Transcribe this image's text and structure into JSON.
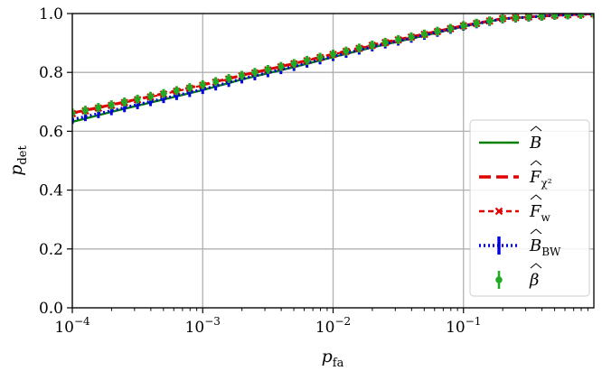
{
  "chart_data": {
    "type": "line",
    "xlabel": "p",
    "xlabel_sub": "fa",
    "ylabel": "p",
    "ylabel_sub": "det",
    "xscale": "log",
    "xlim": [
      0.0001,
      1.0
    ],
    "ylim": [
      0.0,
      1.0
    ],
    "grid": true,
    "legend_placement": "lower-right",
    "x_ticks": [
      {
        "value": 0.0001,
        "base": "10",
        "exp": "−4"
      },
      {
        "value": 0.001,
        "base": "10",
        "exp": "−3"
      },
      {
        "value": 0.01,
        "base": "10",
        "exp": "−2"
      },
      {
        "value": 0.1,
        "base": "10",
        "exp": "−1"
      }
    ],
    "y_ticks": [
      {
        "value": 0.0,
        "label": "0.0"
      },
      {
        "value": 0.2,
        "label": "0.2"
      },
      {
        "value": 0.4,
        "label": "0.4"
      },
      {
        "value": 0.6,
        "label": "0.6"
      },
      {
        "value": 0.8,
        "label": "0.8"
      },
      {
        "value": 1.0,
        "label": "1.0"
      }
    ],
    "x": [
      0.0001,
      0.0002,
      0.0005,
      0.001,
      0.002,
      0.005,
      0.01,
      0.02,
      0.05,
      0.1,
      0.2,
      0.5,
      1.0
    ],
    "series": [
      {
        "name": "B",
        "legend_sub": "",
        "color": "#008000",
        "style": "solid",
        "values": [
          0.632,
          0.666,
          0.708,
          0.74,
          0.776,
          0.818,
          0.852,
          0.885,
          0.925,
          0.956,
          0.982,
          0.994,
          0.999
        ]
      },
      {
        "name": "F",
        "legend_sub": "χ²",
        "color": "#e00000",
        "style": "dashed",
        "values": [
          0.662,
          0.69,
          0.728,
          0.758,
          0.79,
          0.83,
          0.862,
          0.893,
          0.93,
          0.959,
          0.983,
          0.994,
          0.999
        ]
      },
      {
        "name": "F",
        "legend_sub": "w",
        "color": "#e00000",
        "style": "dashed-x",
        "values": [
          0.66,
          0.688,
          0.726,
          0.756,
          0.788,
          0.829,
          0.861,
          0.892,
          0.929,
          0.958,
          0.983,
          0.994,
          0.999
        ]
      },
      {
        "name": "B",
        "legend_sub": "BW",
        "color": "#0000e0",
        "style": "dotted-errorbar",
        "values": [
          0.64,
          0.67,
          0.711,
          0.742,
          0.778,
          0.82,
          0.854,
          0.887,
          0.926,
          0.957,
          0.982,
          0.994,
          0.999
        ]
      },
      {
        "name": "β",
        "legend_sub": "",
        "color": "#22aa22",
        "style": "dot-errorbar",
        "values": [
          0.662,
          0.69,
          0.728,
          0.758,
          0.79,
          0.83,
          0.862,
          0.893,
          0.93,
          0.959,
          0.983,
          0.994,
          0.999
        ]
      }
    ]
  }
}
